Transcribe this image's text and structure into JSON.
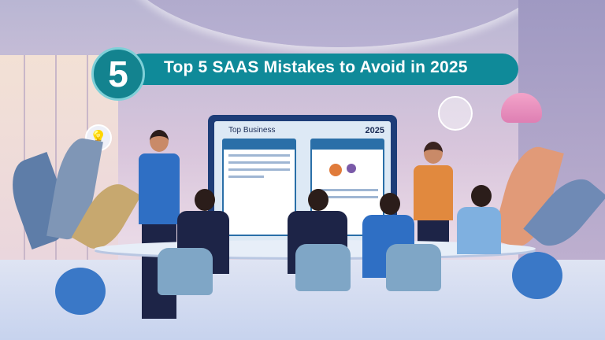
{
  "banner": {
    "number": "5",
    "title": "Top 5 SAAS Mistakes to Avoid in 2025"
  },
  "screen": {
    "title": "Top Business",
    "year": "2025"
  },
  "colors": {
    "banner": "#0f8a99",
    "badge": "#13838f",
    "screen_frame": "#1d3d78"
  }
}
